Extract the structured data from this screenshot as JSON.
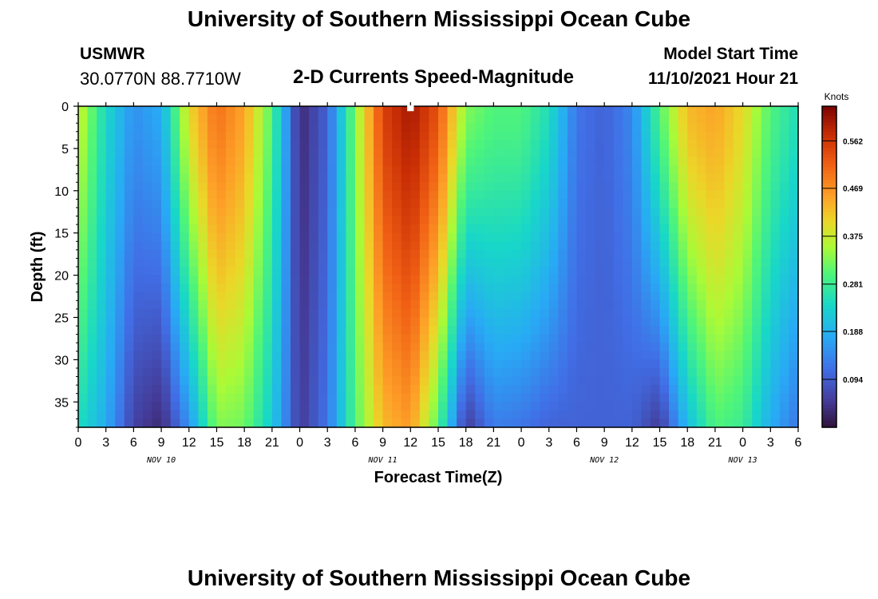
{
  "header": {
    "title": "University of Southern Mississippi Ocean Cube",
    "station_id": "USMWR",
    "coords": "30.0770N  88.7710W",
    "plot_title": "2-D Currents Speed-Magnitude",
    "model_label": "Model Start Time",
    "model_time": "11/10/2021 Hour 21"
  },
  "footer_title": "University of Southern Mississippi Ocean Cube",
  "chart_data": {
    "type": "heatmap",
    "title": "2-D Currents Speed-Magnitude",
    "xlabel": "Forecast Time(Z)",
    "ylabel": "Depth (ft)",
    "ylim": [
      0,
      38
    ],
    "y_ticks": [
      0,
      5,
      10,
      15,
      20,
      25,
      30,
      35
    ],
    "x_ticks": [
      "0",
      "3",
      "6",
      "9",
      "12",
      "15",
      "18",
      "21",
      "0",
      "3",
      "6",
      "9",
      "12",
      "15",
      "18",
      "21",
      "0",
      "3",
      "6",
      "9",
      "12",
      "15",
      "18",
      "21",
      "0",
      "3",
      "6"
    ],
    "day_labels": [
      {
        "label": "NOV 10",
        "hour": 9
      },
      {
        "label": "NOV 11",
        "hour": 33
      },
      {
        "label": "NOV 12",
        "hour": 57
      },
      {
        "label": "NOV 13",
        "hour": 72
      }
    ],
    "x_range_hours": [
      0,
      78
    ],
    "colorbar": {
      "title": "Knots",
      "min": 0.0,
      "max": 0.63,
      "ticks": [
        "0.094",
        "0.188",
        "0.281",
        "0.375",
        "0.469",
        "0.562"
      ]
    },
    "marker": {
      "hour": 36,
      "depth": 0
    },
    "grid": false,
    "surface_profile_knots": [
      {
        "hour": 0,
        "value": 0.38
      },
      {
        "hour": 3,
        "value": 0.24
      },
      {
        "hour": 6,
        "value": 0.15
      },
      {
        "hour": 9,
        "value": 0.18
      },
      {
        "hour": 12,
        "value": 0.4
      },
      {
        "hour": 15,
        "value": 0.5
      },
      {
        "hour": 18,
        "value": 0.45
      },
      {
        "hour": 21,
        "value": 0.3
      },
      {
        "hour": 24,
        "value": 0.03
      },
      {
        "hour": 27,
        "value": 0.1
      },
      {
        "hour": 30,
        "value": 0.33
      },
      {
        "hour": 33,
        "value": 0.55
      },
      {
        "hour": 36,
        "value": 0.6
      },
      {
        "hour": 39,
        "value": 0.53
      },
      {
        "hour": 42,
        "value": 0.33
      },
      {
        "hour": 45,
        "value": 0.3
      },
      {
        "hour": 48,
        "value": 0.3
      },
      {
        "hour": 51,
        "value": 0.25
      },
      {
        "hour": 54,
        "value": 0.12
      },
      {
        "hour": 57,
        "value": 0.1
      },
      {
        "hour": 60,
        "value": 0.14
      },
      {
        "hour": 63,
        "value": 0.3
      },
      {
        "hour": 66,
        "value": 0.43
      },
      {
        "hour": 69,
        "value": 0.45
      },
      {
        "hour": 72,
        "value": 0.4
      },
      {
        "hour": 75,
        "value": 0.3
      },
      {
        "hour": 78,
        "value": 0.25
      }
    ],
    "bottom_profile_knots": [
      {
        "hour": 0,
        "value": 0.25
      },
      {
        "hour": 3,
        "value": 0.18
      },
      {
        "hour": 6,
        "value": 0.06
      },
      {
        "hour": 9,
        "value": 0.03
      },
      {
        "hour": 12,
        "value": 0.15
      },
      {
        "hour": 15,
        "value": 0.33
      },
      {
        "hour": 18,
        "value": 0.32
      },
      {
        "hour": 21,
        "value": 0.22
      },
      {
        "hour": 24,
        "value": 0.05
      },
      {
        "hour": 27,
        "value": 0.12
      },
      {
        "hour": 30,
        "value": 0.3
      },
      {
        "hour": 33,
        "value": 0.43
      },
      {
        "hour": 36,
        "value": 0.46
      },
      {
        "hour": 39,
        "value": 0.3
      },
      {
        "hour": 42,
        "value": 0.05
      },
      {
        "hour": 45,
        "value": 0.13
      },
      {
        "hour": 48,
        "value": 0.12
      },
      {
        "hour": 51,
        "value": 0.1
      },
      {
        "hour": 54,
        "value": 0.1
      },
      {
        "hour": 57,
        "value": 0.1
      },
      {
        "hour": 60,
        "value": 0.1
      },
      {
        "hour": 63,
        "value": 0.05
      },
      {
        "hour": 66,
        "value": 0.2
      },
      {
        "hour": 69,
        "value": 0.3
      },
      {
        "hour": 72,
        "value": 0.28
      },
      {
        "hour": 75,
        "value": 0.18
      },
      {
        "hour": 78,
        "value": 0.12
      }
    ]
  }
}
